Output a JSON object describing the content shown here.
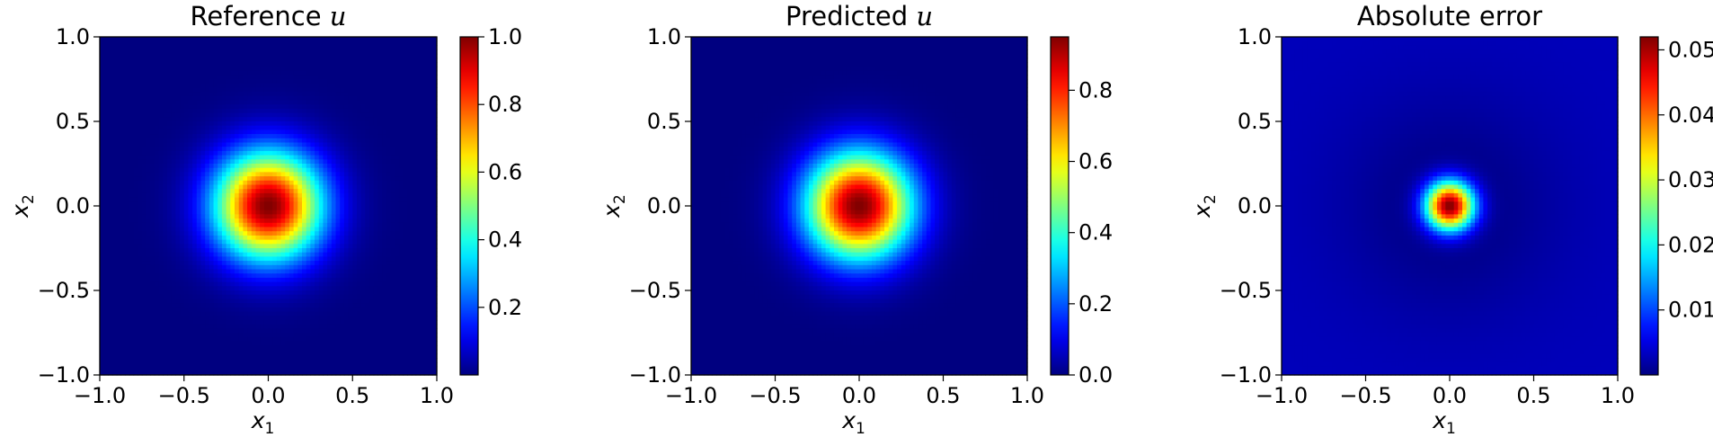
{
  "chart_data": [
    {
      "type": "heatmap",
      "title": "Reference",
      "title_var": "u",
      "xlabel": "x",
      "xlabel_sub": "1",
      "ylabel": "x",
      "ylabel_sub": "2",
      "xlim": [
        -1.0,
        1.0
      ],
      "ylim": [
        -1.0,
        1.0
      ],
      "xticks": [
        "−1.0",
        "−0.5",
        "0.0",
        "0.5",
        "1.0"
      ],
      "yticks": [
        "−1.0",
        "−0.5",
        "0.0",
        "0.5",
        "1.0"
      ],
      "colormap": "jet",
      "colorbar": {
        "min": 0.0,
        "max": 1.0,
        "ticks": [
          0.2,
          0.4,
          0.6,
          0.8,
          1.0
        ],
        "ticklabels": [
          "0.2",
          "0.4",
          "0.6",
          "0.8",
          "1.0"
        ]
      },
      "field": {
        "form": "gaussian",
        "center": [
          0.0,
          0.0
        ],
        "peak": 1.0,
        "sigma": 0.22
      },
      "grid": false
    },
    {
      "type": "heatmap",
      "title": "Predicted",
      "title_var": "u",
      "xlabel": "x",
      "xlabel_sub": "1",
      "ylabel": "x",
      "ylabel_sub": "2",
      "xlim": [
        -1.0,
        1.0
      ],
      "ylim": [
        -1.0,
        1.0
      ],
      "xticks": [
        "−1.0",
        "−0.5",
        "0.0",
        "0.5",
        "1.0"
      ],
      "yticks": [
        "−1.0",
        "−0.5",
        "0.0",
        "0.5",
        "1.0"
      ],
      "colormap": "jet",
      "colorbar": {
        "min": 0.0,
        "max": 0.95,
        "ticks": [
          0.0,
          0.2,
          0.4,
          0.6,
          0.8
        ],
        "ticklabels": [
          "0.0",
          "0.2",
          "0.4",
          "0.6",
          "0.8"
        ]
      },
      "field": {
        "form": "gaussian",
        "center": [
          0.0,
          0.0
        ],
        "peak": 0.95,
        "sigma": 0.22
      },
      "grid": false
    },
    {
      "type": "heatmap",
      "title": "Absolute error",
      "title_var": "",
      "xlabel": "x",
      "xlabel_sub": "1",
      "ylabel": "x",
      "ylabel_sub": "2",
      "xlim": [
        -1.0,
        1.0
      ],
      "ylim": [
        -1.0,
        1.0
      ],
      "xticks": [
        "−1.0",
        "−0.5",
        "0.0",
        "0.5",
        "1.0"
      ],
      "yticks": [
        "−1.0",
        "−0.5",
        "0.0",
        "0.5",
        "1.0"
      ],
      "colormap": "jet",
      "colorbar": {
        "min": 0.0,
        "max": 0.052,
        "ticks": [
          0.01,
          0.02,
          0.03,
          0.04,
          0.05
        ],
        "ticklabels": [
          "0.01",
          "0.02",
          "0.03",
          "0.04",
          "0.05"
        ]
      },
      "field": {
        "form": "gaussian",
        "center": [
          0.0,
          0.0
        ],
        "peak": 0.052,
        "sigma": 0.1,
        "background": 0.003
      },
      "grid": false
    }
  ]
}
